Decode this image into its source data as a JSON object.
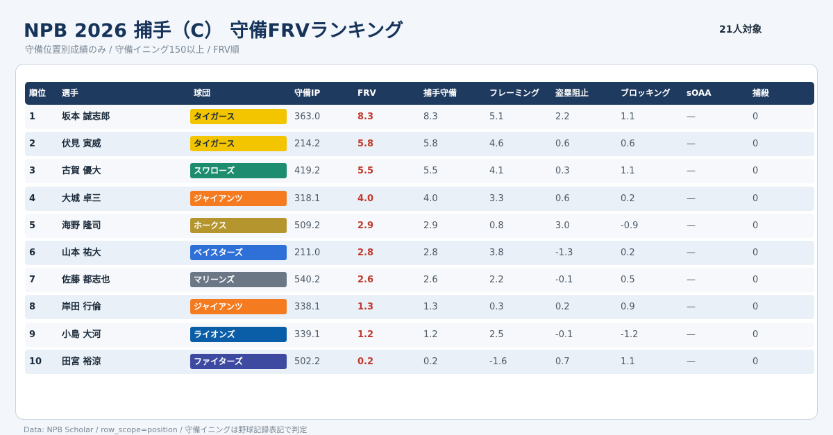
{
  "header": {
    "title": "NPB 2026 捕手（C） 守備FRVランキング",
    "subtitle": "守備位置別成績のみ / 守備イニング150以上 / FRV順",
    "count": "21人対象"
  },
  "table": {
    "columns": [
      "順位",
      "選手",
      "球団",
      "守備IP",
      "FRV",
      "捕手守備",
      "フレーミング",
      "盗塁阻止",
      "ブロッキング",
      "sOAA",
      "捕殺"
    ],
    "rows": [
      {
        "rank": "1",
        "name": "坂本 誠志郎",
        "team": "タイガース",
        "team_color": "#f2c500",
        "team_text_color": "#1b2a3a",
        "ip": "363.0",
        "frv": "8.3",
        "catcher": "8.3",
        "framing": "5.1",
        "steal": "2.2",
        "blocking": "1.1",
        "soaa": "—",
        "assists": "0"
      },
      {
        "rank": "2",
        "name": "伏見 寅威",
        "team": "タイガース",
        "team_color": "#f2c500",
        "team_text_color": "#1b2a3a",
        "ip": "214.2",
        "frv": "5.8",
        "catcher": "5.8",
        "framing": "4.6",
        "steal": "0.6",
        "blocking": "0.6",
        "soaa": "—",
        "assists": "0"
      },
      {
        "rank": "3",
        "name": "古賀 優大",
        "team": "スワローズ",
        "team_color": "#1e8c6e",
        "team_text_color": "#ffffff",
        "ip": "419.2",
        "frv": "5.5",
        "catcher": "5.5",
        "framing": "4.1",
        "steal": "0.3",
        "blocking": "1.1",
        "soaa": "—",
        "assists": "0"
      },
      {
        "rank": "4",
        "name": "大城 卓三",
        "team": "ジャイアンツ",
        "team_color": "#f47b20",
        "team_text_color": "#ffffff",
        "ip": "318.1",
        "frv": "4.0",
        "catcher": "4.0",
        "framing": "3.3",
        "steal": "0.6",
        "blocking": "0.2",
        "soaa": "—",
        "assists": "0"
      },
      {
        "rank": "5",
        "name": "海野 隆司",
        "team": "ホークス",
        "team_color": "#b5952d",
        "team_text_color": "#ffffff",
        "ip": "509.2",
        "frv": "2.9",
        "catcher": "2.9",
        "framing": "0.8",
        "steal": "3.0",
        "blocking": "-0.9",
        "soaa": "—",
        "assists": "0"
      },
      {
        "rank": "6",
        "name": "山本 祐大",
        "team": "ベイスターズ",
        "team_color": "#2e6fd8",
        "team_text_color": "#ffffff",
        "ip": "211.0",
        "frv": "2.8",
        "catcher": "2.8",
        "framing": "3.8",
        "steal": "-1.3",
        "blocking": "0.2",
        "soaa": "—",
        "assists": "0"
      },
      {
        "rank": "7",
        "name": "佐藤 都志也",
        "team": "マリーンズ",
        "team_color": "#6b7785",
        "team_text_color": "#ffffff",
        "ip": "540.2",
        "frv": "2.6",
        "catcher": "2.6",
        "framing": "2.2",
        "steal": "-0.1",
        "blocking": "0.5",
        "soaa": "—",
        "assists": "0"
      },
      {
        "rank": "8",
        "name": "岸田 行倫",
        "team": "ジャイアンツ",
        "team_color": "#f47b20",
        "team_text_color": "#ffffff",
        "ip": "338.1",
        "frv": "1.3",
        "catcher": "1.3",
        "framing": "0.3",
        "steal": "0.2",
        "blocking": "0.9",
        "soaa": "—",
        "assists": "0"
      },
      {
        "rank": "9",
        "name": "小島 大河",
        "team": "ライオンズ",
        "team_color": "#0a5ea8",
        "team_text_color": "#ffffff",
        "ip": "339.1",
        "frv": "1.2",
        "catcher": "1.2",
        "framing": "2.5",
        "steal": "-0.1",
        "blocking": "-1.2",
        "soaa": "—",
        "assists": "0"
      },
      {
        "rank": "10",
        "name": "田宮 裕涼",
        "team": "ファイターズ",
        "team_color": "#3d4aa0",
        "team_text_color": "#ffffff",
        "ip": "502.2",
        "frv": "0.2",
        "catcher": "0.2",
        "framing": "-1.6",
        "steal": "0.7",
        "blocking": "1.1",
        "soaa": "—",
        "assists": "0"
      }
    ]
  },
  "footer": "Data: NPB Scholar / row_scope=position / 守備イニングは野球記録表記で判定"
}
